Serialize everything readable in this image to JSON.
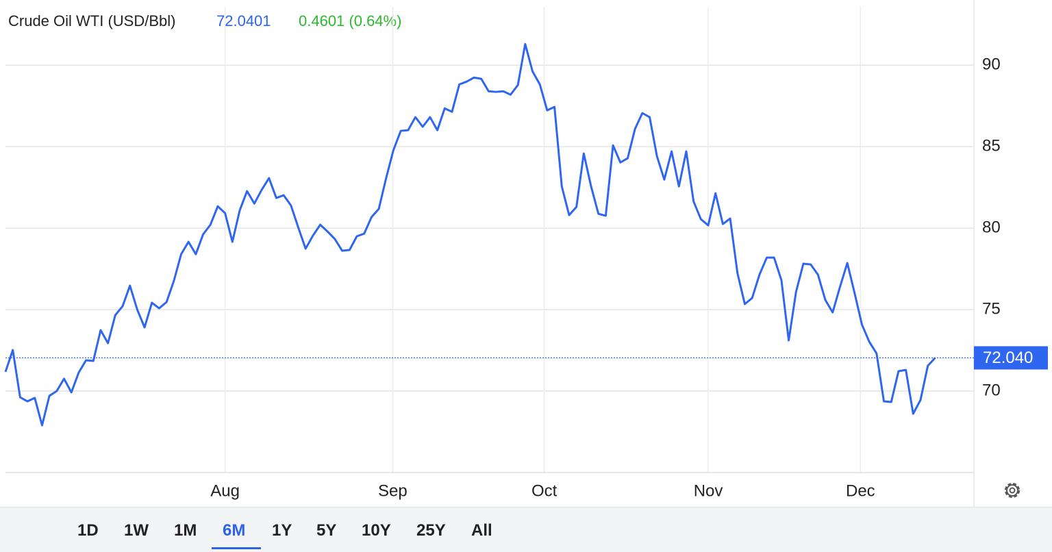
{
  "chart_data": {
    "type": "line",
    "title": "Crude Oil WTI (USD/Bbl)",
    "price": "72.0401",
    "change": "0.4601 (0.64%)",
    "last_label": "72.040",
    "series": [
      {
        "name": "Crude Oil WTI",
        "color": "#2f66f0",
        "values": [
          71.18,
          72.52,
          69.62,
          69.37,
          69.58,
          67.9,
          69.71,
          70.0,
          70.76,
          69.92,
          71.13,
          71.89,
          71.85,
          73.74,
          72.94,
          74.66,
          75.21,
          76.47,
          75.0,
          73.91,
          75.42,
          75.08,
          75.46,
          76.76,
          78.4,
          79.16,
          78.4,
          79.62,
          80.21,
          81.34,
          80.92,
          79.16,
          81.09,
          82.27,
          81.51,
          82.35,
          83.07,
          81.85,
          82.02,
          81.39,
          80.04,
          78.74,
          79.54,
          80.21,
          79.79,
          79.33,
          78.61,
          78.66,
          79.5,
          79.66,
          80.67,
          81.18,
          83.07,
          84.79,
          85.97,
          86.01,
          86.81,
          86.22,
          86.81,
          86.01,
          87.35,
          87.14,
          88.82,
          88.99,
          89.24,
          89.16,
          88.4,
          88.36,
          88.4,
          88.19,
          88.78,
          91.3,
          89.62,
          88.82,
          87.23,
          87.44,
          82.56,
          80.8,
          81.3,
          84.58,
          82.56,
          80.88,
          80.76,
          85.08,
          84.03,
          84.29,
          86.09,
          87.06,
          86.81,
          84.41,
          82.98,
          84.71,
          82.56,
          84.71,
          81.64,
          80.55,
          80.17,
          82.14,
          80.25,
          80.59,
          77.23,
          75.34,
          75.71,
          77.14,
          78.19,
          78.19,
          76.81,
          73.11,
          76.09,
          77.82,
          77.77,
          77.14,
          75.59,
          74.83,
          76.39,
          77.86,
          76.01,
          74.08,
          73.03,
          72.31,
          69.37,
          69.33,
          71.22,
          71.3,
          68.61,
          69.45,
          71.55,
          72.04
        ]
      }
    ],
    "xlim": [
      0,
      132.3
    ],
    "xticks": [
      {
        "value": 30,
        "label": "Aug"
      },
      {
        "value": 52.9,
        "label": "Sep"
      },
      {
        "value": 73.6,
        "label": "Oct"
      },
      {
        "value": 96,
        "label": "Nov"
      },
      {
        "value": 116.8,
        "label": "Dec"
      }
    ],
    "ylim": [
      65,
      94
    ],
    "yticks": [
      70,
      75,
      80,
      85,
      90
    ],
    "grid": true,
    "ranges": [
      "1D",
      "1W",
      "1M",
      "6M",
      "1Y",
      "5Y",
      "10Y",
      "25Y",
      "All"
    ],
    "selected_range": "6M"
  }
}
